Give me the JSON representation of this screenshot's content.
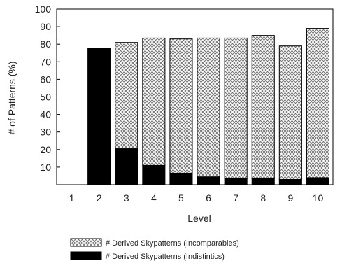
{
  "chart_data": {
    "type": "bar",
    "stacked": true,
    "xlabel": "Level",
    "ylabel": "# of Patterns (%)",
    "ylim": [
      0,
      100
    ],
    "yticks": [
      10,
      20,
      30,
      40,
      50,
      60,
      70,
      80,
      90,
      100
    ],
    "categories": [
      "1",
      "2",
      "3",
      "4",
      "5",
      "6",
      "7",
      "8",
      "9",
      "10"
    ],
    "series": [
      {
        "name": "# Derived Skypatterns (Indistintics)",
        "fill": "solid-black",
        "color": "#000000",
        "values": [
          0,
          77.5,
          20.5,
          11,
          6.5,
          4.5,
          3.5,
          3.5,
          3,
          4
        ]
      },
      {
        "name": "# Derived Skypatterns (Incomparables)",
        "fill": "crosshatch",
        "color": "#888888",
        "values": [
          0,
          0,
          60.5,
          72.5,
          76.5,
          79,
          80,
          81.5,
          76,
          85
        ]
      }
    ],
    "legend_position": "bottom",
    "legend_order": [
      "# Derived Skypatterns (Incomparables)",
      "# Derived Skypatterns (Indistintics)"
    ],
    "grid": false
  }
}
